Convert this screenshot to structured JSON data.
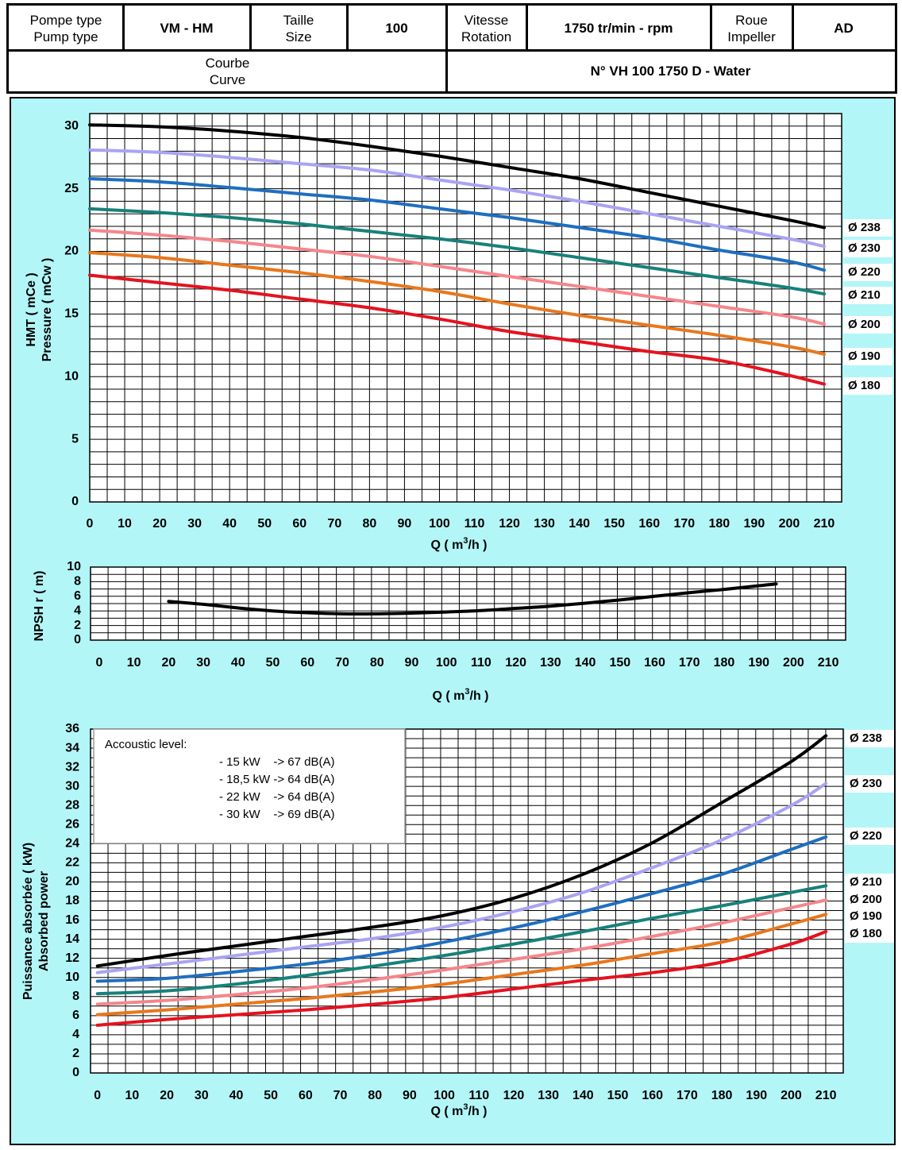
{
  "header": {
    "pump_type_fr": "Pompe type",
    "pump_type_en": "Pump type",
    "pump_type_value": "VM - HM",
    "size_fr": "Taille",
    "size_en": "Size",
    "size_value": "100",
    "speed_fr": "Vitesse",
    "speed_en": "Rotation",
    "speed_value": "1750 tr/min - rpm",
    "impeller_fr": "Roue",
    "impeller_en": "Impeller",
    "impeller_value": "AD",
    "curve_fr": "Courbe",
    "curve_en": "Curve",
    "curve_value": "N° VH 100 1750 D - Water"
  },
  "colors": {
    "background": "#b3f6f8",
    "d238": "#000000",
    "d230": "#aaa3f2",
    "d220": "#1f6ebf",
    "d210": "#17817b",
    "d200": "#f4868c",
    "d190": "#e8771c",
    "d180": "#e5121f"
  },
  "acoustic": {
    "title": "Accoustic level:",
    "lines": [
      "- 15 kW    -> 67 dB(A)",
      "- 18,5 kW -> 64 dB(A)",
      "- 22 kW    -> 64 dB(A)",
      "- 30 kW    -> 69 dB(A)"
    ]
  },
  "chart_data": [
    {
      "type": "line",
      "ylabel_line1": "HMT ( mCe )",
      "ylabel_line2": "Pressure ( mCw )",
      "xlabel_main": "Q ( m",
      "xlabel_sup": "3",
      "xlabel_end": "/h )",
      "xlim": [
        0,
        215
      ],
      "ylim": [
        0,
        31
      ],
      "xticks": [
        0,
        10,
        20,
        30,
        40,
        50,
        60,
        70,
        80,
        90,
        100,
        110,
        120,
        130,
        140,
        150,
        160,
        170,
        180,
        190,
        200,
        210
      ],
      "yticks": [
        0,
        5,
        10,
        15,
        20,
        25,
        30
      ],
      "grid": true,
      "series": [
        {
          "name": "Ø 238",
          "color_key": "d238",
          "x": [
            0,
            20,
            40,
            60,
            80,
            100,
            120,
            140,
            160,
            180,
            200,
            210
          ],
          "y": [
            30.1,
            29.95,
            29.6,
            29.1,
            28.4,
            27.6,
            26.7,
            25.8,
            24.7,
            23.6,
            22.5,
            21.9
          ]
        },
        {
          "name": "Ø 230",
          "color_key": "d230",
          "x": [
            0,
            20,
            40,
            60,
            80,
            100,
            120,
            140,
            160,
            180,
            200,
            210
          ],
          "y": [
            28.1,
            27.9,
            27.5,
            27.0,
            26.5,
            25.7,
            24.9,
            24.0,
            23.0,
            22.0,
            21.0,
            20.4
          ]
        },
        {
          "name": "Ø 220",
          "color_key": "d220",
          "x": [
            0,
            20,
            40,
            60,
            80,
            100,
            120,
            140,
            160,
            180,
            200,
            210
          ],
          "y": [
            25.8,
            25.55,
            25.1,
            24.6,
            24.1,
            23.4,
            22.7,
            21.9,
            21.1,
            20.1,
            19.2,
            18.5
          ]
        },
        {
          "name": "Ø 210",
          "color_key": "d210",
          "x": [
            0,
            20,
            40,
            60,
            80,
            100,
            120,
            140,
            160,
            180,
            200,
            210
          ],
          "y": [
            23.4,
            23.1,
            22.7,
            22.2,
            21.6,
            21.0,
            20.3,
            19.5,
            18.7,
            17.9,
            17.1,
            16.6
          ]
        },
        {
          "name": "Ø 200",
          "color_key": "d200",
          "x": [
            0,
            20,
            40,
            60,
            80,
            100,
            120,
            140,
            160,
            180,
            200,
            210
          ],
          "y": [
            21.7,
            21.3,
            20.8,
            20.2,
            19.6,
            18.8,
            18.0,
            17.2,
            16.4,
            15.6,
            14.8,
            14.2
          ]
        },
        {
          "name": "Ø 190",
          "color_key": "d190",
          "x": [
            0,
            20,
            40,
            60,
            80,
            100,
            120,
            140,
            160,
            180,
            200,
            210
          ],
          "y": [
            19.9,
            19.5,
            18.9,
            18.3,
            17.6,
            16.8,
            15.8,
            14.9,
            14.1,
            13.3,
            12.4,
            11.8
          ]
        },
        {
          "name": "Ø 180",
          "color_key": "d180",
          "x": [
            0,
            20,
            40,
            60,
            80,
            100,
            120,
            140,
            160,
            180,
            200,
            210
          ],
          "y": [
            18.1,
            17.5,
            16.9,
            16.2,
            15.5,
            14.6,
            13.6,
            12.8,
            12.0,
            11.3,
            10.1,
            9.4
          ]
        }
      ]
    },
    {
      "type": "line",
      "ylabel": "NPSH r ( m)",
      "xlabel_main": "Q ( m",
      "xlabel_sup": "3",
      "xlabel_end": "/h )",
      "xlim": [
        -2.5,
        215
      ],
      "ylim": [
        0,
        10
      ],
      "xticks": [
        0,
        10,
        20,
        30,
        40,
        50,
        60,
        70,
        80,
        90,
        100,
        110,
        120,
        130,
        140,
        150,
        160,
        170,
        180,
        190,
        200,
        210
      ],
      "yticks": [
        0,
        2,
        4,
        6,
        8,
        10
      ],
      "grid": true,
      "series": [
        {
          "color_key": "d238",
          "x": [
            20,
            30,
            40,
            50,
            60,
            70,
            80,
            90,
            100,
            110,
            120,
            130,
            140,
            150,
            160,
            170,
            180,
            190,
            195
          ],
          "y": [
            5.3,
            4.9,
            4.4,
            4.0,
            3.75,
            3.6,
            3.6,
            3.7,
            3.85,
            4.05,
            4.35,
            4.65,
            5.05,
            5.5,
            6.0,
            6.5,
            6.95,
            7.45,
            7.7
          ]
        }
      ]
    },
    {
      "type": "line",
      "ylabel_line1": "Puissance absorbée ( kW)",
      "ylabel_line2": "Absorbed power",
      "xlabel_main": "Q ( m",
      "xlabel_sup": "3",
      "xlabel_end": "/h )",
      "xlim": [
        -2,
        215
      ],
      "ylim": [
        0,
        36
      ],
      "xticks": [
        0,
        10,
        20,
        30,
        40,
        50,
        60,
        70,
        80,
        90,
        100,
        110,
        120,
        130,
        140,
        150,
        160,
        170,
        180,
        190,
        200,
        210
      ],
      "yticks": [
        0,
        2,
        4,
        6,
        8,
        10,
        12,
        14,
        16,
        18,
        20,
        22,
        24,
        26,
        28,
        30,
        32,
        34,
        36
      ],
      "grid": true,
      "series": [
        {
          "name": "Ø 238",
          "color_key": "d238",
          "x": [
            0,
            20,
            40,
            60,
            80,
            100,
            120,
            140,
            160,
            180,
            200,
            210
          ],
          "y": [
            11.2,
            12.3,
            13.3,
            14.3,
            15.3,
            16.5,
            18.3,
            20.8,
            24.1,
            28.3,
            32.6,
            35.3
          ]
        },
        {
          "name": "Ø 230",
          "color_key": "d230",
          "x": [
            0,
            20,
            40,
            60,
            80,
            100,
            120,
            140,
            160,
            180,
            200,
            210
          ],
          "y": [
            10.5,
            11.4,
            12.3,
            13.2,
            14.1,
            15.3,
            16.9,
            18.9,
            21.5,
            24.4,
            28.0,
            30.3
          ]
        },
        {
          "name": "Ø 220",
          "color_key": "d220",
          "x": [
            0,
            20,
            40,
            60,
            80,
            100,
            120,
            140,
            160,
            180,
            200,
            210
          ],
          "y": [
            9.6,
            9.9,
            10.6,
            11.4,
            12.4,
            13.7,
            15.2,
            16.9,
            18.8,
            20.8,
            23.4,
            24.7
          ]
        },
        {
          "name": "Ø 210",
          "color_key": "d210",
          "x": [
            0,
            20,
            40,
            60,
            80,
            100,
            120,
            140,
            160,
            180,
            200,
            210
          ],
          "y": [
            8.3,
            8.6,
            9.3,
            10.2,
            11.2,
            12.3,
            13.5,
            14.8,
            16.2,
            17.5,
            18.9,
            19.6
          ]
        },
        {
          "name": "Ø 200",
          "color_key": "d200",
          "x": [
            0,
            20,
            40,
            60,
            80,
            100,
            120,
            140,
            160,
            180,
            200,
            210
          ],
          "y": [
            7.2,
            7.6,
            8.2,
            8.9,
            9.8,
            10.8,
            11.9,
            13.0,
            14.3,
            15.7,
            17.3,
            18.1
          ]
        },
        {
          "name": "Ø 190",
          "color_key": "d190",
          "x": [
            0,
            20,
            40,
            60,
            80,
            100,
            120,
            140,
            160,
            180,
            200,
            210
          ],
          "y": [
            6.1,
            6.6,
            7.2,
            7.8,
            8.5,
            9.3,
            10.3,
            11.3,
            12.5,
            13.7,
            15.6,
            16.6
          ]
        },
        {
          "name": "Ø 180",
          "color_key": "d180",
          "x": [
            0,
            20,
            40,
            60,
            80,
            100,
            120,
            140,
            160,
            180,
            200,
            210
          ],
          "y": [
            5.0,
            5.6,
            6.1,
            6.6,
            7.2,
            7.9,
            8.8,
            9.7,
            10.5,
            11.6,
            13.5,
            14.8
          ]
        }
      ]
    }
  ]
}
